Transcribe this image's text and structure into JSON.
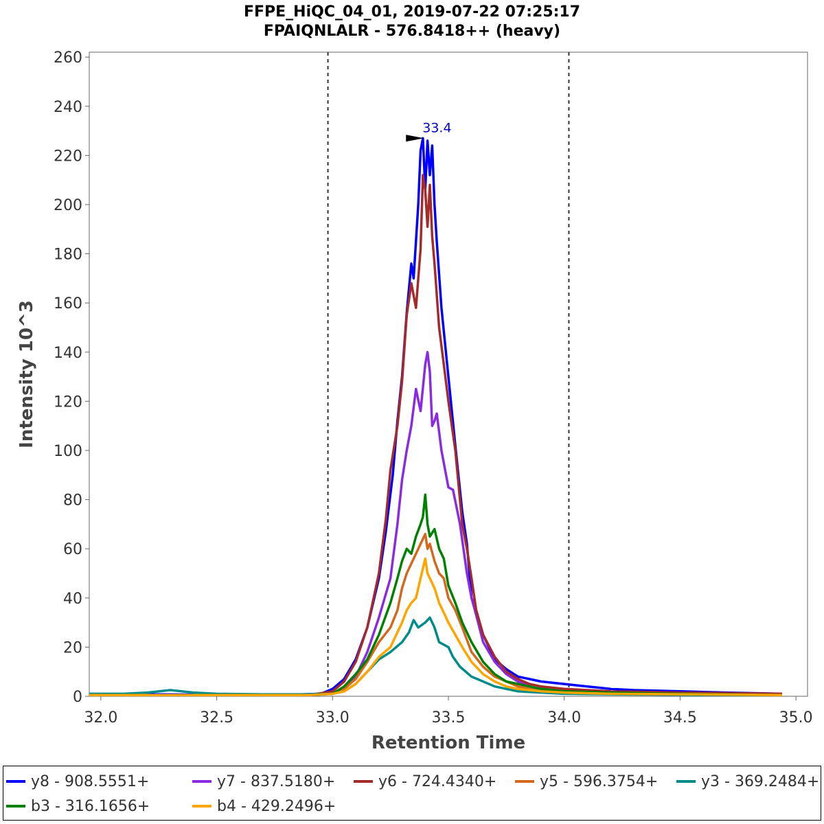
{
  "chart_data": {
    "type": "line",
    "title": "FFPE_HiQC_04_01, 2019-07-22 07:25:17",
    "subtitle": "FPAIQNLALR - 576.8418++ (heavy)",
    "xlabel": "Retention Time",
    "ylabel": "Intensity 10^3",
    "xlim": [
      31.95,
      35.05
    ],
    "ylim": [
      0,
      262
    ],
    "xticks": [
      "32.0",
      "32.5",
      "33.0",
      "33.5",
      "34.0",
      "34.5",
      "35.0"
    ],
    "yticks": [
      "0",
      "20",
      "40",
      "60",
      "80",
      "100",
      "120",
      "140",
      "160",
      "180",
      "200",
      "220",
      "240",
      "260"
    ],
    "boundaries": [
      32.98,
      34.02
    ],
    "peak_annotation": {
      "label": "33.4",
      "x": 33.4,
      "y": 227
    },
    "grid": false,
    "legend_position": "bottom",
    "series": [
      {
        "name": "y8 - 908.5551+",
        "color": "#0000FF",
        "points": [
          [
            31.95,
            0.5
          ],
          [
            32.2,
            0.8
          ],
          [
            32.5,
            0.6
          ],
          [
            32.8,
            0.6
          ],
          [
            32.95,
            1
          ],
          [
            33.0,
            3
          ],
          [
            33.05,
            7
          ],
          [
            33.1,
            15
          ],
          [
            33.15,
            28
          ],
          [
            33.2,
            48
          ],
          [
            33.23,
            67
          ],
          [
            33.26,
            90
          ],
          [
            33.28,
            112
          ],
          [
            33.3,
            130
          ],
          [
            33.32,
            156
          ],
          [
            33.34,
            176
          ],
          [
            33.35,
            170
          ],
          [
            33.37,
            200
          ],
          [
            33.38,
            222
          ],
          [
            33.39,
            227
          ],
          [
            33.4,
            206
          ],
          [
            33.41,
            226
          ],
          [
            33.42,
            212
          ],
          [
            33.43,
            224
          ],
          [
            33.44,
            200
          ],
          [
            33.45,
            185
          ],
          [
            33.47,
            158
          ],
          [
            33.5,
            130
          ],
          [
            33.53,
            102
          ],
          [
            33.56,
            75
          ],
          [
            33.58,
            62
          ],
          [
            33.6,
            40
          ],
          [
            33.62,
            35
          ],
          [
            33.65,
            25
          ],
          [
            33.7,
            15
          ],
          [
            33.75,
            11
          ],
          [
            33.8,
            8
          ],
          [
            33.85,
            7
          ],
          [
            33.9,
            6
          ],
          [
            34.0,
            5
          ],
          [
            34.1,
            4
          ],
          [
            34.2,
            3
          ],
          [
            34.3,
            2.5
          ],
          [
            34.5,
            2
          ],
          [
            34.7,
            1.5
          ],
          [
            34.94,
            1
          ]
        ]
      },
      {
        "name": "y7 - 837.5180+",
        "color": "#8A2BE2",
        "points": [
          [
            31.95,
            0.5
          ],
          [
            32.5,
            0.5
          ],
          [
            32.9,
            0.5
          ],
          [
            33.0,
            1
          ],
          [
            33.05,
            3
          ],
          [
            33.1,
            8
          ],
          [
            33.15,
            18
          ],
          [
            33.2,
            32
          ],
          [
            33.25,
            48
          ],
          [
            33.28,
            70
          ],
          [
            33.3,
            88
          ],
          [
            33.32,
            100
          ],
          [
            33.34,
            110
          ],
          [
            33.36,
            125
          ],
          [
            33.38,
            116
          ],
          [
            33.4,
            135
          ],
          [
            33.41,
            140
          ],
          [
            33.42,
            132
          ],
          [
            33.43,
            110
          ],
          [
            33.44,
            112
          ],
          [
            33.45,
            115
          ],
          [
            33.47,
            100
          ],
          [
            33.5,
            85
          ],
          [
            33.52,
            84
          ],
          [
            33.55,
            70
          ],
          [
            33.58,
            50
          ],
          [
            33.6,
            40
          ],
          [
            33.62,
            33
          ],
          [
            33.65,
            22
          ],
          [
            33.7,
            14
          ],
          [
            33.75,
            9
          ],
          [
            33.8,
            6
          ],
          [
            33.85,
            4
          ],
          [
            33.9,
            3
          ],
          [
            34.0,
            2
          ],
          [
            34.2,
            1.5
          ],
          [
            34.5,
            1
          ],
          [
            34.94,
            0.5
          ]
        ]
      },
      {
        "name": "y6 - 724.4340+",
        "color": "#A52A2A",
        "points": [
          [
            31.95,
            0.5
          ],
          [
            32.5,
            0.5
          ],
          [
            32.9,
            0.5
          ],
          [
            33.0,
            2
          ],
          [
            33.05,
            6
          ],
          [
            33.1,
            14
          ],
          [
            33.15,
            28
          ],
          [
            33.2,
            50
          ],
          [
            33.23,
            72
          ],
          [
            33.25,
            92
          ],
          [
            33.28,
            110
          ],
          [
            33.3,
            128
          ],
          [
            33.32,
            155
          ],
          [
            33.34,
            168
          ],
          [
            33.36,
            158
          ],
          [
            33.38,
            182
          ],
          [
            33.39,
            212
          ],
          [
            33.4,
            206
          ],
          [
            33.41,
            191
          ],
          [
            33.42,
            208
          ],
          [
            33.43,
            187
          ],
          [
            33.44,
            176
          ],
          [
            33.46,
            150
          ],
          [
            33.48,
            135
          ],
          [
            33.5,
            120
          ],
          [
            33.53,
            100
          ],
          [
            33.56,
            70
          ],
          [
            33.58,
            60
          ],
          [
            33.6,
            48
          ],
          [
            33.62,
            35
          ],
          [
            33.65,
            25
          ],
          [
            33.7,
            16
          ],
          [
            33.75,
            10
          ],
          [
            33.8,
            7
          ],
          [
            33.85,
            5
          ],
          [
            33.9,
            4
          ],
          [
            34.0,
            3
          ],
          [
            34.2,
            2
          ],
          [
            34.5,
            1.5
          ],
          [
            34.94,
            1
          ]
        ]
      },
      {
        "name": "y5 - 596.3754+",
        "color": "#D2691E",
        "points": [
          [
            31.95,
            0.5
          ],
          [
            32.5,
            0.5
          ],
          [
            32.9,
            0.5
          ],
          [
            33.0,
            1
          ],
          [
            33.05,
            3
          ],
          [
            33.1,
            7
          ],
          [
            33.15,
            14
          ],
          [
            33.2,
            22
          ],
          [
            33.25,
            28
          ],
          [
            33.28,
            35
          ],
          [
            33.3,
            44
          ],
          [
            33.32,
            50
          ],
          [
            33.34,
            54
          ],
          [
            33.36,
            58
          ],
          [
            33.38,
            62
          ],
          [
            33.4,
            66
          ],
          [
            33.41,
            60
          ],
          [
            33.42,
            62
          ],
          [
            33.44,
            55
          ],
          [
            33.46,
            50
          ],
          [
            33.48,
            48
          ],
          [
            33.5,
            40
          ],
          [
            33.53,
            35
          ],
          [
            33.56,
            28
          ],
          [
            33.6,
            18
          ],
          [
            33.65,
            12
          ],
          [
            33.7,
            8
          ],
          [
            33.75,
            6
          ],
          [
            33.8,
            4
          ],
          [
            33.85,
            3
          ],
          [
            33.9,
            2
          ],
          [
            34.0,
            1.5
          ],
          [
            34.2,
            1
          ],
          [
            34.5,
            0.8
          ],
          [
            34.94,
            0.5
          ]
        ]
      },
      {
        "name": "y3 - 369.2484+",
        "color": "#008B8B",
        "points": [
          [
            31.95,
            1
          ],
          [
            32.1,
            1
          ],
          [
            32.2,
            1.5
          ],
          [
            32.3,
            2.5
          ],
          [
            32.4,
            1.5
          ],
          [
            32.5,
            1
          ],
          [
            32.7,
            0.8
          ],
          [
            32.9,
            0.8
          ],
          [
            33.0,
            1
          ],
          [
            33.05,
            2
          ],
          [
            33.1,
            5
          ],
          [
            33.15,
            10
          ],
          [
            33.2,
            15
          ],
          [
            33.25,
            18
          ],
          [
            33.3,
            22
          ],
          [
            33.33,
            26
          ],
          [
            33.35,
            31
          ],
          [
            33.37,
            28
          ],
          [
            33.4,
            30
          ],
          [
            33.42,
            32
          ],
          [
            33.44,
            28
          ],
          [
            33.46,
            22
          ],
          [
            33.5,
            20
          ],
          [
            33.52,
            16
          ],
          [
            33.55,
            12
          ],
          [
            33.6,
            8
          ],
          [
            33.65,
            6
          ],
          [
            33.7,
            4
          ],
          [
            33.75,
            3
          ],
          [
            33.8,
            2
          ],
          [
            33.9,
            1.5
          ],
          [
            34.0,
            1
          ],
          [
            34.2,
            0.8
          ],
          [
            34.5,
            0.6
          ],
          [
            34.94,
            0.5
          ]
        ]
      },
      {
        "name": "b3 - 316.1656+",
        "color": "#008000",
        "points": [
          [
            31.95,
            0.5
          ],
          [
            32.5,
            0.5
          ],
          [
            32.9,
            0.5
          ],
          [
            33.0,
            1
          ],
          [
            33.05,
            4
          ],
          [
            33.1,
            9
          ],
          [
            33.15,
            15
          ],
          [
            33.2,
            25
          ],
          [
            33.25,
            38
          ],
          [
            33.28,
            48
          ],
          [
            33.3,
            55
          ],
          [
            33.32,
            60
          ],
          [
            33.34,
            58
          ],
          [
            33.36,
            65
          ],
          [
            33.38,
            70
          ],
          [
            33.39,
            73
          ],
          [
            33.4,
            82
          ],
          [
            33.41,
            70
          ],
          [
            33.42,
            65
          ],
          [
            33.44,
            68
          ],
          [
            33.46,
            60
          ],
          [
            33.48,
            56
          ],
          [
            33.5,
            45
          ],
          [
            33.53,
            38
          ],
          [
            33.56,
            30
          ],
          [
            33.6,
            22
          ],
          [
            33.65,
            14
          ],
          [
            33.7,
            9
          ],
          [
            33.75,
            6
          ],
          [
            33.8,
            5
          ],
          [
            33.85,
            4
          ],
          [
            33.9,
            3
          ],
          [
            34.0,
            2
          ],
          [
            34.2,
            1.5
          ],
          [
            34.5,
            1
          ],
          [
            34.94,
            0.5
          ]
        ]
      },
      {
        "name": "b4 - 429.2496+",
        "color": "#FFA500",
        "points": [
          [
            31.95,
            0.5
          ],
          [
            32.5,
            0.5
          ],
          [
            32.9,
            0.5
          ],
          [
            33.0,
            1
          ],
          [
            33.05,
            2
          ],
          [
            33.1,
            5
          ],
          [
            33.15,
            10
          ],
          [
            33.2,
            16
          ],
          [
            33.25,
            20
          ],
          [
            33.28,
            26
          ],
          [
            33.3,
            30
          ],
          [
            33.32,
            35
          ],
          [
            33.34,
            38
          ],
          [
            33.36,
            40
          ],
          [
            33.38,
            48
          ],
          [
            33.4,
            56
          ],
          [
            33.41,
            50
          ],
          [
            33.42,
            48
          ],
          [
            33.44,
            44
          ],
          [
            33.46,
            38
          ],
          [
            33.48,
            34
          ],
          [
            33.5,
            30
          ],
          [
            33.53,
            25
          ],
          [
            33.56,
            20
          ],
          [
            33.6,
            14
          ],
          [
            33.65,
            9
          ],
          [
            33.7,
            6
          ],
          [
            33.75,
            4
          ],
          [
            33.8,
            3
          ],
          [
            33.9,
            2
          ],
          [
            34.0,
            1.5
          ],
          [
            34.2,
            1
          ],
          [
            34.5,
            0.8
          ],
          [
            34.94,
            0.5
          ]
        ]
      }
    ]
  }
}
